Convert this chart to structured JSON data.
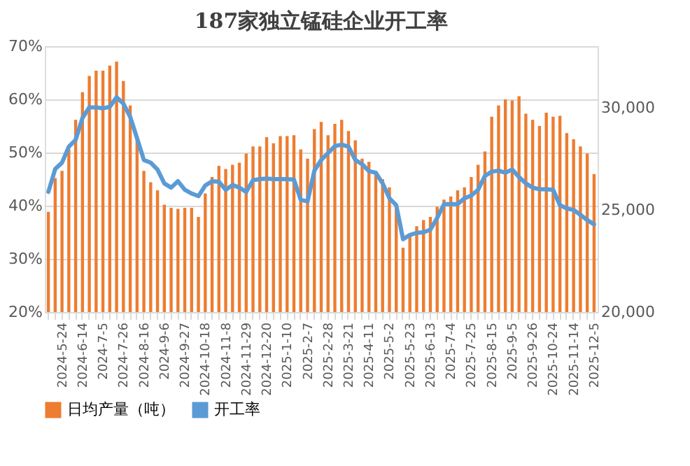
{
  "chart_data": {
    "type": "bar",
    "title": "187家独立锰硅企业开工率",
    "categories": [
      null,
      null,
      "2024-5-24",
      null,
      null,
      "2024-6-14",
      null,
      null,
      "2024-7-5",
      null,
      null,
      "2024-7-26",
      null,
      null,
      "2024-8-16",
      null,
      null,
      "2024-9-6",
      null,
      null,
      "2024-9-27",
      null,
      null,
      "2024-10-18",
      null,
      null,
      "2024-11-8",
      null,
      null,
      "2024-11-29",
      null,
      null,
      "2024-12-20",
      null,
      null,
      "2025-1-10",
      null,
      null,
      "2025-2-7",
      null,
      null,
      "2025-2-28",
      null,
      null,
      "2025-3-21",
      null,
      null,
      "2025-4-11",
      null,
      null,
      "2025-5-2",
      null,
      null,
      "2025-5-23",
      null,
      null,
      "2025-6-13",
      null,
      null,
      "2025-7-4",
      null,
      null,
      "2025-7-25",
      null,
      null,
      "2025-8-15",
      null,
      null,
      "2025-9-5",
      null,
      null,
      "2025-9-26",
      null,
      null,
      "2025-10-24",
      null,
      null,
      "2025-11-14",
      null,
      null,
      "2025-12-5"
    ],
    "series": [
      {
        "name": "日均产量（吨）",
        "axis": "y2",
        "color": "#ed7d31",
        "values": [
          24900,
          26550,
          26900,
          27950,
          29400,
          30750,
          31550,
          31800,
          31800,
          32050,
          32250,
          31300,
          30100,
          28500,
          26900,
          26350,
          25950,
          25250,
          25100,
          25050,
          25100,
          25100,
          24650,
          25800,
          26600,
          27150,
          27000,
          27200,
          27300,
          27750,
          28100,
          28100,
          28550,
          28250,
          28600,
          28600,
          28650,
          27950,
          27500,
          28950,
          29300,
          28650,
          29200,
          29400,
          28850,
          28400,
          27500,
          27350,
          26900,
          26500,
          26100,
          25050,
          23150,
          23750,
          24200,
          24500,
          24650,
          25150,
          25500,
          25650,
          25950,
          26100,
          26600,
          27200,
          27850,
          29550,
          30100,
          30400,
          30350,
          30550,
          29700,
          29400,
          29100,
          29750,
          29550,
          29600,
          28750,
          28450,
          28100,
          27750,
          26750
        ]
      },
      {
        "name": "开工率",
        "type": "line",
        "color": "#5b9bd5",
        "values": [
          42.6,
          46.9,
          48.1,
          51.1,
          52.4,
          56.5,
          58.5,
          58.5,
          58.3,
          58.6,
          60.4,
          59.2,
          56.7,
          52.7,
          48.6,
          48.1,
          46.8,
          44.2,
          43.4,
          44.6,
          43.0,
          42.3,
          41.8,
          43.8,
          44.6,
          44.5,
          43.0,
          43.9,
          43.4,
          42.6,
          44.8,
          45.0,
          45.1,
          45.0,
          45.0,
          45.0,
          44.9,
          41.1,
          40.8,
          46.6,
          48.6,
          49.9,
          51.2,
          51.5,
          51.1,
          48.6,
          47.8,
          46.5,
          46.2,
          44.2,
          41.4,
          40.1,
          33.7,
          34.5,
          34.9,
          35.0,
          35.5,
          37.7,
          40.3,
          40.3,
          40.3,
          41.4,
          41.9,
          43.0,
          45.6,
          46.4,
          46.6,
          46.2,
          46.8,
          45.4,
          44.2,
          43.4,
          43.1,
          43.1,
          43.0,
          40.1,
          39.5,
          39.2,
          38.3,
          37.3,
          36.5
        ]
      }
    ],
    "ylim": [
      20,
      70
    ],
    "yticks": [
      {
        "value": 20,
        "label": "20%"
      },
      {
        "value": 30,
        "label": "30%"
      },
      {
        "value": 40,
        "label": "40%"
      },
      {
        "value": 50,
        "label": "50%"
      },
      {
        "value": 60,
        "label": "60%"
      },
      {
        "value": 70,
        "label": "70%"
      }
    ],
    "y2lim": [
      20000,
      33000
    ],
    "y2ticks": [
      {
        "value": 20000,
        "label": "20,000"
      },
      {
        "value": 25000,
        "label": "25,000"
      },
      {
        "value": 30000,
        "label": "30,000"
      }
    ],
    "grid": "y",
    "legend": "bottom"
  }
}
